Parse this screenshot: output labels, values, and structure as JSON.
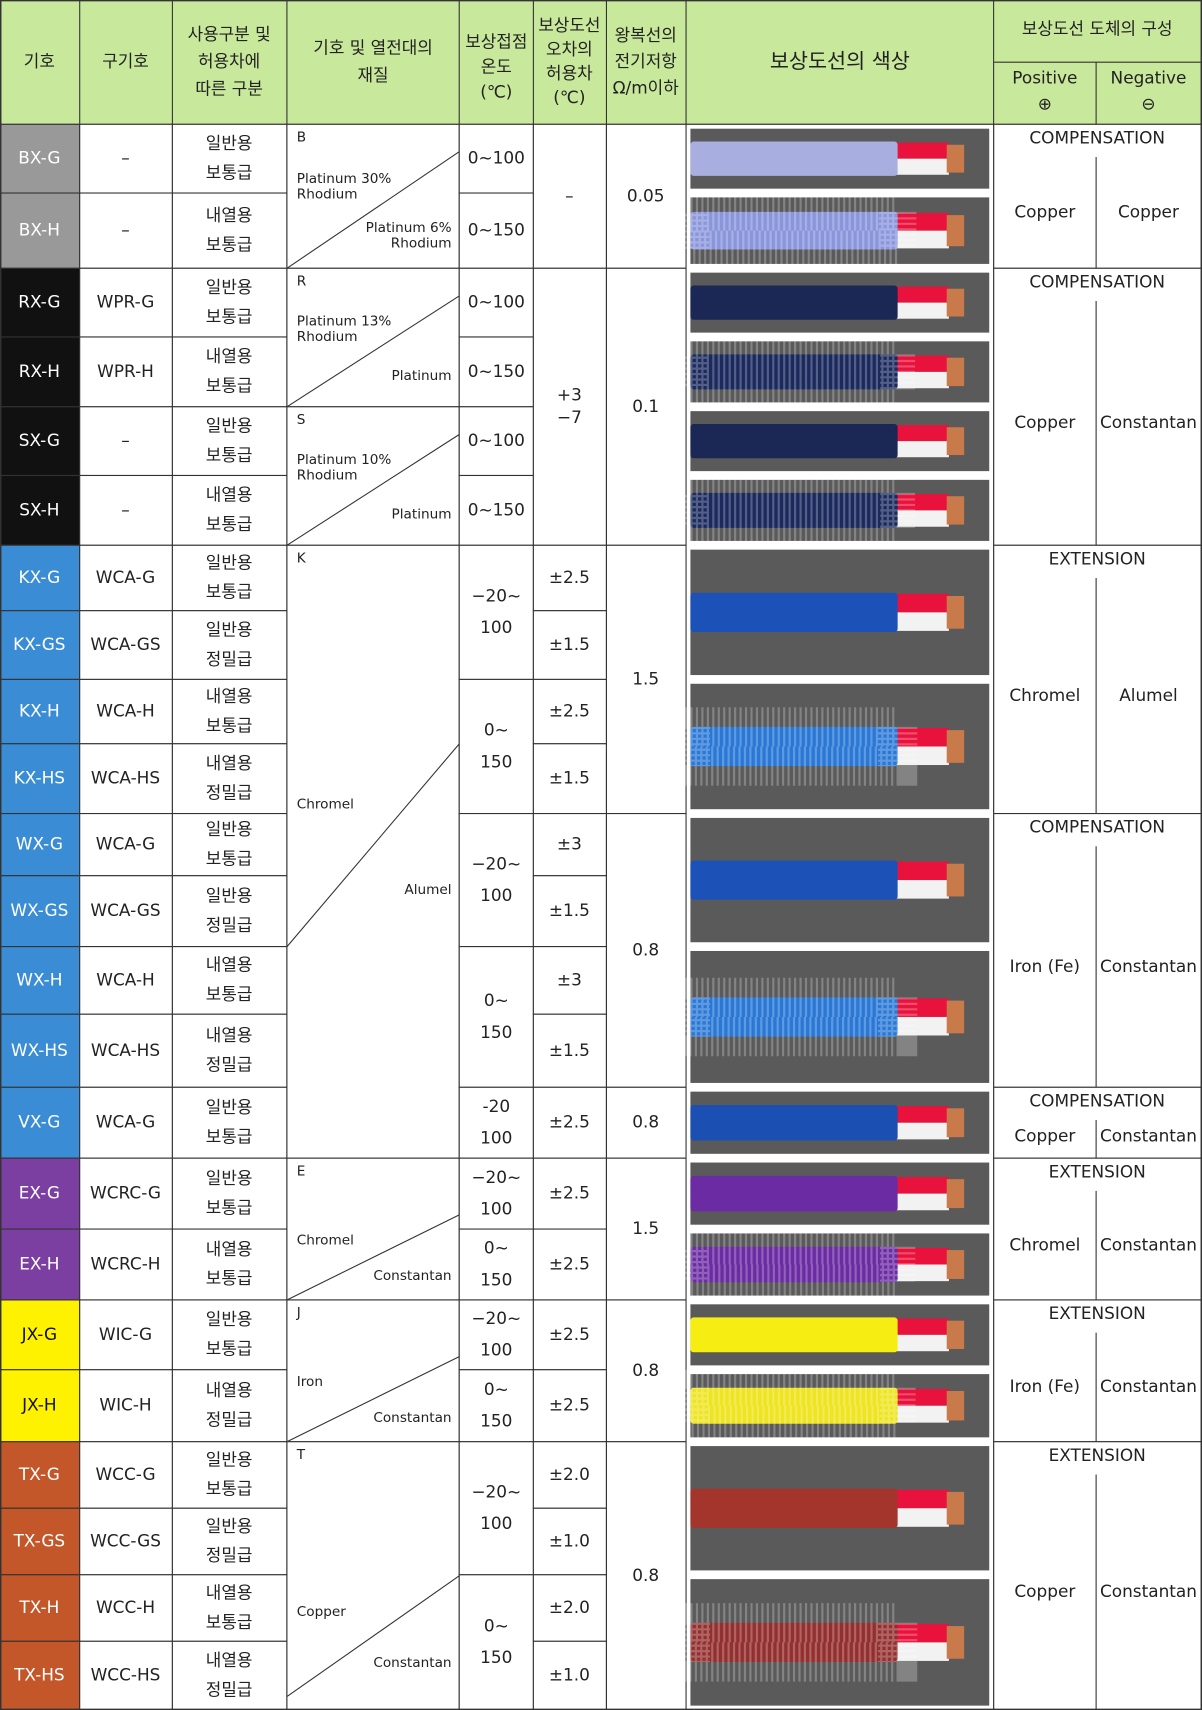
{
  "header": {
    "symbol": "기호",
    "old_symbol": "구기호",
    "usage": [
      "사용구분 및",
      "허용차에",
      "따른 구분"
    ],
    "material": [
      "기호 및 열전대의",
      "재질"
    ],
    "temperature": [
      "보상접점",
      "온도",
      "(℃)"
    ],
    "tolerance": [
      "보상도선",
      "오차의",
      "허용차",
      "(℃)"
    ],
    "resistance": [
      "왕복선의",
      "전기저항",
      "Ω/m이하"
    ],
    "color": "보상도선의 색상",
    "composition": "보상도선 도체의 구성",
    "positive": [
      "Positive",
      "⊕"
    ],
    "negative": [
      "Negative",
      "⊖"
    ]
  },
  "rows": [
    {
      "symbol": "BX-G",
      "old_symbol": "–",
      "usage": [
        "일반용",
        "보통급"
      ]
    },
    {
      "symbol": "BX-H",
      "old_symbol": "–",
      "usage": [
        "내열용",
        "보통급"
      ]
    },
    {
      "symbol": "RX-G",
      "old_symbol": "WPR-G",
      "usage": [
        "일반용",
        "보통급"
      ]
    },
    {
      "symbol": "RX-H",
      "old_symbol": "WPR-H",
      "usage": [
        "내열용",
        "보통급"
      ]
    },
    {
      "symbol": "SX-G",
      "old_symbol": "–",
      "usage": [
        "일반용",
        "보통급"
      ]
    },
    {
      "symbol": "SX-H",
      "old_symbol": "–",
      "usage": [
        "내열용",
        "보통급"
      ]
    },
    {
      "symbol": "KX-G",
      "old_symbol": "WCA-G",
      "usage": [
        "일반용",
        "보통급"
      ]
    },
    {
      "symbol": "KX-GS",
      "old_symbol": "WCA-GS",
      "usage": [
        "일반용",
        "정밀급"
      ]
    },
    {
      "symbol": "KX-H",
      "old_symbol": "WCA-H",
      "usage": [
        "내열용",
        "보통급"
      ]
    },
    {
      "symbol": "KX-HS",
      "old_symbol": "WCA-HS",
      "usage": [
        "내열용",
        "정밀급"
      ]
    },
    {
      "symbol": "WX-G",
      "old_symbol": "WCA-G",
      "usage": [
        "일반용",
        "보통급"
      ]
    },
    {
      "symbol": "WX-GS",
      "old_symbol": "WCA-GS",
      "usage": [
        "일반용",
        "정밀급"
      ]
    },
    {
      "symbol": "WX-H",
      "old_symbol": "WCA-H",
      "usage": [
        "내열용",
        "보통급"
      ]
    },
    {
      "symbol": "WX-HS",
      "old_symbol": "WCA-HS",
      "usage": [
        "내열용",
        "정밀급"
      ]
    },
    {
      "symbol": "VX-G",
      "old_symbol": "WCA-G",
      "usage": [
        "일반용",
        "보통급"
      ]
    },
    {
      "symbol": "EX-G",
      "old_symbol": "WCRC-G",
      "usage": [
        "일반용",
        "보통급"
      ]
    },
    {
      "symbol": "EX-H",
      "old_symbol": "WCRC-H",
      "usage": [
        "내열용",
        "보통급"
      ]
    },
    {
      "symbol": "JX-G",
      "old_symbol": "WIC-G",
      "usage": [
        "일반용",
        "보통급"
      ]
    },
    {
      "symbol": "JX-H",
      "old_symbol": "WIC-H",
      "usage": [
        "내열용",
        "정밀급"
      ]
    },
    {
      "symbol": "TX-G",
      "old_symbol": "WCC-G",
      "usage": [
        "일반용",
        "보통급"
      ]
    },
    {
      "symbol": "TX-GS",
      "old_symbol": "WCC-GS",
      "usage": [
        "일반용",
        "정밀급"
      ]
    },
    {
      "symbol": "TX-H",
      "old_symbol": "WCC-H",
      "usage": [
        "내열용",
        "보통급"
      ]
    },
    {
      "symbol": "TX-HS",
      "old_symbol": "WCC-HS",
      "usage": [
        "내열용",
        "정밀급"
      ]
    }
  ],
  "materials": [
    {
      "letter": "B",
      "positive": [
        "Platinum 30%",
        "Rhodium"
      ],
      "negative": [
        "Platinum 6%",
        "Rhodium"
      ]
    },
    {
      "letter": "R",
      "positive": [
        "Platinum 13%",
        "Rhodium"
      ],
      "negative": [
        "Platinum"
      ]
    },
    {
      "letter": "S",
      "positive": [
        "Platinum 10%",
        "Rhodium"
      ],
      "negative": [
        "Platinum"
      ]
    },
    {
      "letter": "K",
      "positive": [
        "Chromel"
      ],
      "negative": [
        "Alumel"
      ]
    },
    {
      "letter": "E",
      "positive": [
        "Chromel"
      ],
      "negative": [
        "Constantan"
      ]
    },
    {
      "letter": "J",
      "positive": [
        "Iron"
      ],
      "negative": [
        "Constantan"
      ]
    },
    {
      "letter": "T",
      "positive": [
        "Copper"
      ],
      "negative": [
        "Constantan"
      ]
    }
  ],
  "temperatures": [
    [
      "0~100"
    ],
    [
      "0~150"
    ],
    [
      "0~100"
    ],
    [
      "0~150"
    ],
    [
      "0~100"
    ],
    [
      "0~150"
    ],
    [
      "−20~",
      "100"
    ],
    [
      "0~",
      "150"
    ],
    [
      "−20~",
      "100"
    ],
    [
      "0~",
      "150"
    ],
    [
      "-20",
      "100"
    ],
    [
      "−20~",
      "100"
    ],
    [
      "0~",
      "150"
    ],
    [
      "−20~",
      "100"
    ],
    [
      "0~",
      "150"
    ],
    [
      "−20~",
      "100"
    ],
    [
      "0~",
      "150"
    ]
  ],
  "tolerances": [
    [
      "–"
    ],
    [
      "+3",
      "−7"
    ],
    [
      "±2.5"
    ],
    [
      "±1.5"
    ],
    [
      "±2.5"
    ],
    [
      "±1.5"
    ],
    [
      "±3"
    ],
    [
      "±1.5"
    ],
    [
      "±3"
    ],
    [
      "±1.5"
    ],
    [
      "±2.5"
    ],
    [
      "±2.5"
    ],
    [
      "±2.5"
    ],
    [
      "±2.5"
    ],
    [
      "±2.5"
    ],
    [
      "±2.0"
    ],
    [
      "±1.0"
    ],
    [
      "±2.0"
    ],
    [
      "±1.0"
    ]
  ],
  "resistances": [
    "0.05",
    "0.1",
    "1.5",
    "0.8",
    "0.8",
    "1.5",
    "0.8",
    "0.8"
  ],
  "compositions": [
    {
      "type": "COMPENSATION",
      "positive": "Copper",
      "negative": "Copper"
    },
    {
      "type": "COMPENSATION",
      "positive": "Copper",
      "negative": "Constantan"
    },
    {
      "type": "EXTENSION",
      "positive": "Chromel",
      "negative": "Alumel"
    },
    {
      "type": "COMPENSATION",
      "positive": "Iron (Fe)",
      "negative": "Constantan"
    },
    {
      "type": "COMPENSATION",
      "positive": "Copper",
      "negative": "Constantan"
    },
    {
      "type": "EXTENSION",
      "positive": "Chromel",
      "negative": "Constantan"
    },
    {
      "type": "EXTENSION",
      "positive": "Iron (Fe)",
      "negative": "Constantan"
    },
    {
      "type": "EXTENSION",
      "positive": "Copper",
      "negative": "Constantan"
    }
  ]
}
